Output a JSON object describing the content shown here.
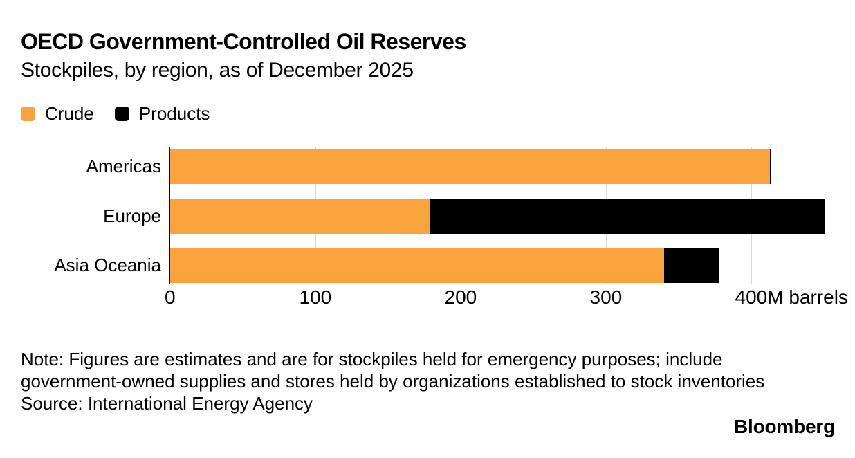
{
  "header": {
    "title": "OECD Government-Controlled Oil Reserves",
    "subtitle": "Stockpiles, by region, as of December 2025"
  },
  "legend": [
    {
      "label": "Crude",
      "color": "#FAA23C"
    },
    {
      "label": "Products",
      "color": "#000000"
    }
  ],
  "chart_data": {
    "type": "bar",
    "orientation": "horizontal",
    "stacked": true,
    "title": "OECD Government-Controlled Oil Reserves",
    "subtitle": "Stockpiles, by region, as of December 2025",
    "unit": "M barrels",
    "categories": [
      "Americas",
      "Europe",
      "Asia Oceania"
    ],
    "series": [
      {
        "name": "Crude",
        "color": "#FAA23C",
        "values": [
          413,
          179,
          340
        ]
      },
      {
        "name": "Products",
        "color": "#000000",
        "values": [
          1,
          272,
          38
        ]
      }
    ],
    "totals": [
      414,
      451,
      378
    ],
    "x_ticks": [
      {
        "value": 0,
        "label": "0",
        "suffix": ""
      },
      {
        "value": 100,
        "label": "100",
        "suffix": ""
      },
      {
        "value": 200,
        "label": "200",
        "suffix": ""
      },
      {
        "value": 300,
        "label": "300",
        "suffix": ""
      },
      {
        "value": 400,
        "label": "400",
        "suffix": "M barrels"
      }
    ],
    "xlim": [
      0,
      460
    ],
    "grid": "vertical",
    "legend_position": "top-left"
  },
  "footer": {
    "note_lines": [
      "Note: Figures are estimates and are for stockpiles held for emergency purposes; include",
      "government-owned supplies and stores held by organizations established to stock inventories"
    ],
    "source": "Source: International Energy Agency",
    "brand": "Bloomberg"
  },
  "colors": {
    "accent_orange": "#FAA23C",
    "series_black": "#000000",
    "gridline": "#D8D8D8",
    "background": "#FFFFFF",
    "text": "#000000"
  }
}
